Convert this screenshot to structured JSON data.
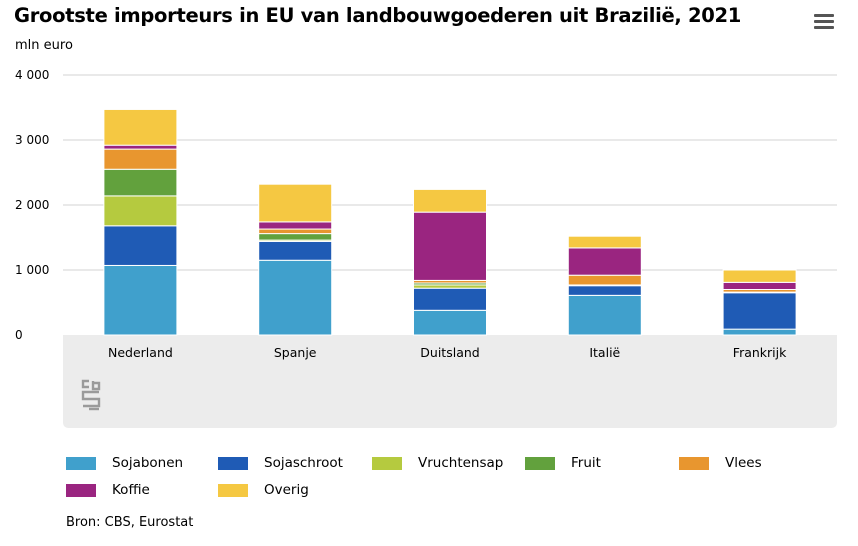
{
  "title": "Grootste importeurs in EU van landbouwgoederen uit Brazilië, 2021",
  "menu_icon": "hamburger-menu-icon",
  "source": "Bron: CBS, Eurostat",
  "logo_icon": "cbs-logo-icon",
  "chart_data": {
    "type": "bar",
    "stacked": true,
    "title": "Grootste importeurs in EU van landbouwgoederen uit Brazilië, 2021",
    "ylabel": "mln euro",
    "xlabel": "",
    "ylim": [
      0,
      4000
    ],
    "yticks": [
      0,
      1000,
      2000,
      3000,
      4000
    ],
    "ytick_labels": [
      "0",
      "1 000",
      "2 000",
      "3 000",
      "4 000"
    ],
    "grid": true,
    "legend_position": "bottom",
    "categories": [
      "Nederland",
      "Spanje",
      "Duitsland",
      "Italië",
      "Frankrijk"
    ],
    "series": [
      {
        "name": "Sojabonen",
        "color": "#40a0cc",
        "values": [
          1070,
          1150,
          380,
          610,
          90
        ]
      },
      {
        "name": "Sojaschroot",
        "color": "#1f5bb5",
        "values": [
          610,
          290,
          340,
          150,
          560
        ]
      },
      {
        "name": "Vruchtensap",
        "color": "#b5ca3f",
        "values": [
          460,
          20,
          50,
          5,
          0
        ]
      },
      {
        "name": "Fruit",
        "color": "#62a13d",
        "values": [
          410,
          100,
          30,
          5,
          10
        ]
      },
      {
        "name": "Vlees",
        "color": "#e8962f",
        "values": [
          310,
          70,
          40,
          150,
          40
        ]
      },
      {
        "name": "Koffie",
        "color": "#9a2580",
        "values": [
          60,
          110,
          1050,
          420,
          110
        ]
      },
      {
        "name": "Overig",
        "color": "#f5c842",
        "values": [
          550,
          580,
          350,
          180,
          190
        ]
      }
    ]
  }
}
